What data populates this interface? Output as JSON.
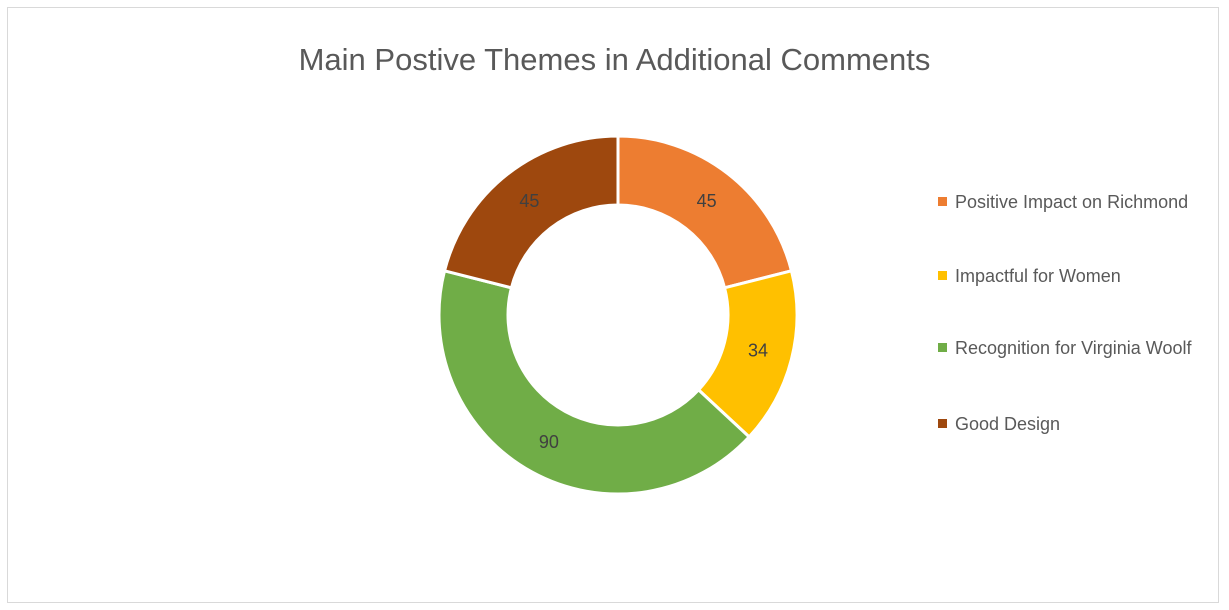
{
  "chart_data": {
    "type": "pie",
    "variant": "donut",
    "title": "Main Postive Themes in Additional Comments",
    "categories": [
      "Positive Impact on Richmond",
      "Impactful for Women",
      "Recognition for Virginia Woolf",
      "Good Design"
    ],
    "values": [
      45,
      34,
      90,
      45
    ],
    "colors": [
      "#ED7D31",
      "#FFC000",
      "#70AD47",
      "#9E480E"
    ],
    "data_labels": [
      "45",
      "34",
      "90",
      "45"
    ],
    "legend_position": "right",
    "label_color": "#404040"
  }
}
